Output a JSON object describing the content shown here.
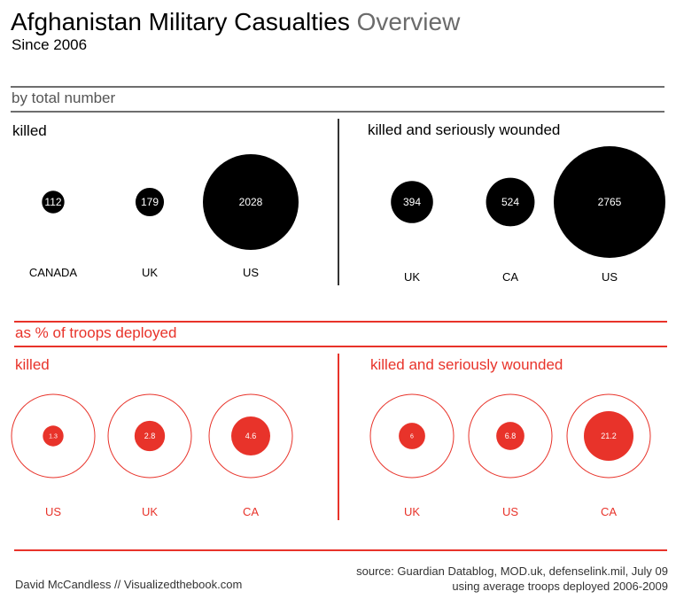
{
  "header": {
    "title_main": "Afghanistan Military Casualties",
    "title_sub": "Overview",
    "subtitle": "Since 2006"
  },
  "sections": {
    "total": "by total number",
    "percent": "as % of troops deployed"
  },
  "colors": {
    "black": "#000000",
    "red": "#e8332a",
    "gray_line": "#6e6e6e"
  },
  "chart_data": [
    {
      "type": "bubble",
      "title": "killed",
      "section": "by total number",
      "categories": [
        "CANADA",
        "UK",
        "US"
      ],
      "values": [
        112,
        179,
        2028
      ],
      "labels": [
        "112",
        "179",
        "2028"
      ],
      "style": "filled"
    },
    {
      "type": "bubble",
      "title": "killed and seriously wounded",
      "section": "by total number",
      "categories": [
        "UK",
        "CA",
        "US"
      ],
      "values": [
        394,
        524,
        2765
      ],
      "labels": [
        "394",
        "524",
        "2765"
      ],
      "style": "filled"
    },
    {
      "type": "bubble",
      "title": "killed",
      "section": "as % of troops deployed",
      "categories": [
        "US",
        "UK",
        "CA"
      ],
      "values": [
        1.3,
        2.8,
        4.6
      ],
      "labels": [
        "1.3",
        "2.8",
        "4.6"
      ],
      "style": "ring"
    },
    {
      "type": "bubble",
      "title": "killed and seriously wounded",
      "section": "as % of troops deployed",
      "categories": [
        "UK",
        "US",
        "CA"
      ],
      "values": [
        6,
        6.8,
        21.2
      ],
      "labels": [
        "6",
        "6.8",
        "21.2"
      ],
      "style": "ring"
    }
  ],
  "footer": {
    "credit": "David McCandless // Visualizedthebook.com",
    "source_line1": "source: Guardian Datablog, MOD.uk, defenselink.mil, July 09",
    "source_line2": "using average troops deployed 2006-2009"
  }
}
